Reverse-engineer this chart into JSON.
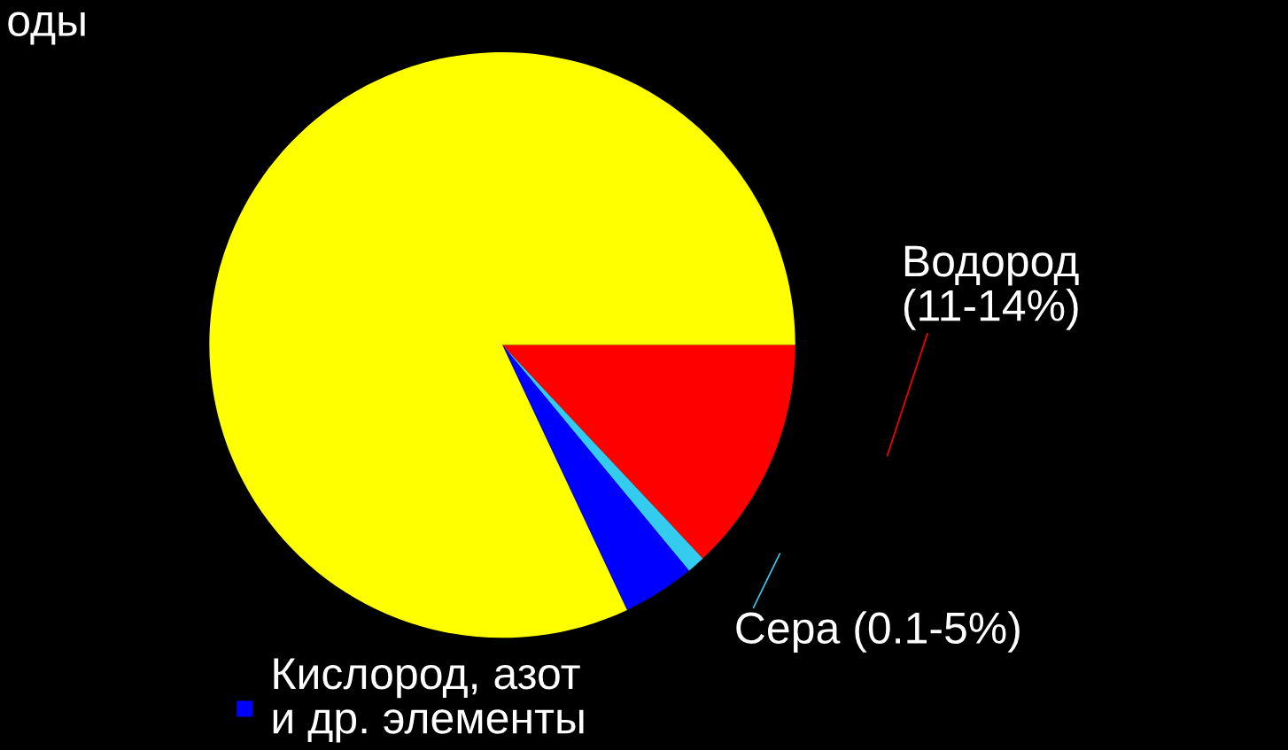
{
  "chart_data": {
    "type": "pie",
    "categories": [
      "Водород\n(11-14%)",
      "Сера (0.1-5%)",
      "Кислород, азот\nи др. элементы",
      "оды"
    ],
    "values": [
      13,
      1,
      4,
      82
    ],
    "colors": [
      "#ff0000",
      "#33ccee",
      "#0000ff",
      "#ffff00"
    ]
  }
}
